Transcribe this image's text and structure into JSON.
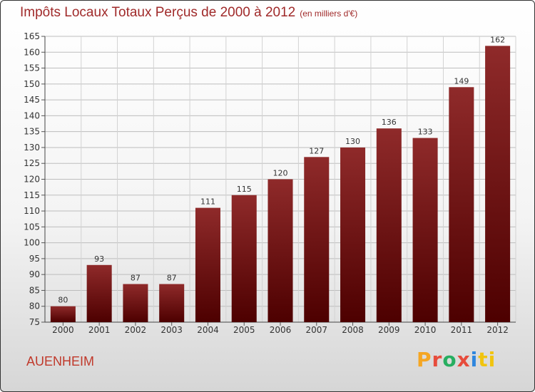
{
  "chart_data": {
    "type": "bar",
    "title": "Impôts Locaux Totaux Perçus de 2000 à 2012",
    "subtitle": "(en milliers d'€)",
    "categories": [
      "2000",
      "2001",
      "2002",
      "2003",
      "2004",
      "2005",
      "2006",
      "2007",
      "2008",
      "2009",
      "2010",
      "2011",
      "2012"
    ],
    "values": [
      80,
      93,
      87,
      87,
      111,
      115,
      120,
      127,
      130,
      136,
      133,
      149,
      162
    ],
    "ylim": [
      75,
      165
    ],
    "yticks": [
      75,
      80,
      85,
      90,
      95,
      100,
      105,
      110,
      115,
      120,
      125,
      130,
      135,
      140,
      145,
      150,
      155,
      160,
      165
    ],
    "grid": true,
    "xlabel": "",
    "ylabel": "",
    "bar_color": "#7d1818"
  },
  "footer": {
    "commune": "AUENHEIM",
    "brand": [
      "P",
      "r",
      "o",
      "x",
      "i",
      "ti"
    ]
  }
}
